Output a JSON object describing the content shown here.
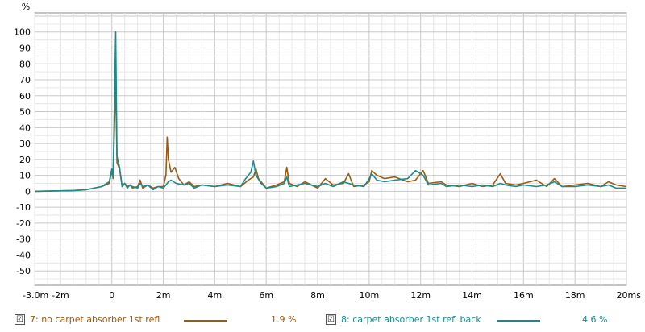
{
  "chart_data": {
    "type": "line",
    "title": "",
    "xlabel": "",
    "ylabel": "%",
    "xlim": [
      -3.0,
      20.0
    ],
    "ylim": [
      -59,
      112
    ],
    "x_ticks": [
      {
        "v": -3.0,
        "label": "-3.0m"
      },
      {
        "v": -2,
        "label": "-2m"
      },
      {
        "v": 0,
        "label": "0"
      },
      {
        "v": 2,
        "label": "2m"
      },
      {
        "v": 4,
        "label": "4m"
      },
      {
        "v": 6,
        "label": "6m"
      },
      {
        "v": 8,
        "label": "8m"
      },
      {
        "v": 10,
        "label": "10m"
      },
      {
        "v": 12,
        "label": "12m"
      },
      {
        "v": 14,
        "label": "14m"
      },
      {
        "v": 16,
        "label": "16m"
      },
      {
        "v": 18,
        "label": "18m"
      },
      {
        "v": 20,
        "label": "20ms"
      }
    ],
    "y_ticks": [
      100,
      90,
      80,
      70,
      60,
      50,
      40,
      30,
      20,
      10,
      0,
      -10,
      -20,
      -30,
      -40,
      -50
    ],
    "grid": true,
    "series": [
      {
        "name": "7: no carpet absorber 1st refl",
        "color": "#9c5a12",
        "points": [
          [
            -3,
            0
          ],
          [
            -1.5,
            0.5
          ],
          [
            -1,
            1
          ],
          [
            -0.4,
            3
          ],
          [
            -0.1,
            5
          ],
          [
            0,
            13
          ],
          [
            0.05,
            8
          ],
          [
            0.15,
            70
          ],
          [
            0.2,
            18
          ],
          [
            0.3,
            14
          ],
          [
            0.4,
            3
          ],
          [
            0.5,
            5
          ],
          [
            0.6,
            3
          ],
          [
            0.7,
            4
          ],
          [
            0.8,
            2
          ],
          [
            1,
            3
          ],
          [
            1.1,
            7
          ],
          [
            1.2,
            2
          ],
          [
            1.4,
            4
          ],
          [
            1.6,
            2
          ],
          [
            1.8,
            3
          ],
          [
            2.0,
            3
          ],
          [
            2.1,
            10
          ],
          [
            2.15,
            34
          ],
          [
            2.2,
            20
          ],
          [
            2.3,
            12
          ],
          [
            2.45,
            15
          ],
          [
            2.6,
            8
          ],
          [
            2.8,
            4
          ],
          [
            3.0,
            6
          ],
          [
            3.2,
            3
          ],
          [
            3.5,
            4
          ],
          [
            4.0,
            3
          ],
          [
            4.5,
            5
          ],
          [
            5.0,
            3
          ],
          [
            5.3,
            7
          ],
          [
            5.5,
            9
          ],
          [
            5.6,
            14
          ],
          [
            5.7,
            8
          ],
          [
            6.0,
            2
          ],
          [
            6.4,
            4
          ],
          [
            6.7,
            6
          ],
          [
            6.8,
            15
          ],
          [
            6.9,
            5
          ],
          [
            7.2,
            3
          ],
          [
            7.5,
            6
          ],
          [
            8.0,
            2
          ],
          [
            8.3,
            8
          ],
          [
            8.6,
            4
          ],
          [
            9.0,
            5
          ],
          [
            9.2,
            11
          ],
          [
            9.4,
            3
          ],
          [
            9.8,
            4
          ],
          [
            10.0,
            6
          ],
          [
            10.1,
            13
          ],
          [
            10.3,
            10
          ],
          [
            10.6,
            8
          ],
          [
            11.0,
            9
          ],
          [
            11.5,
            6
          ],
          [
            11.8,
            7
          ],
          [
            12.1,
            13
          ],
          [
            12.3,
            5
          ],
          [
            12.8,
            6
          ],
          [
            13.0,
            4
          ],
          [
            13.5,
            3
          ],
          [
            14.0,
            5
          ],
          [
            14.4,
            3
          ],
          [
            14.8,
            4
          ],
          [
            15.1,
            11
          ],
          [
            15.3,
            5
          ],
          [
            15.7,
            4
          ],
          [
            16.0,
            5
          ],
          [
            16.5,
            7
          ],
          [
            16.9,
            3
          ],
          [
            17.2,
            8
          ],
          [
            17.5,
            3
          ],
          [
            18.0,
            4
          ],
          [
            18.5,
            5
          ],
          [
            19.0,
            3
          ],
          [
            19.3,
            6
          ],
          [
            19.6,
            4
          ],
          [
            20.0,
            3
          ]
        ]
      },
      {
        "name": "8: carpet absorber 1st refl back",
        "color": "#1a8a8c",
        "points": [
          [
            -3,
            0
          ],
          [
            -1.5,
            0.5
          ],
          [
            -1,
            1
          ],
          [
            -0.4,
            3
          ],
          [
            -0.1,
            6
          ],
          [
            0,
            14
          ],
          [
            0.05,
            9
          ],
          [
            0.15,
            100
          ],
          [
            0.2,
            22
          ],
          [
            0.3,
            15
          ],
          [
            0.4,
            3
          ],
          [
            0.5,
            5
          ],
          [
            0.6,
            2
          ],
          [
            0.7,
            4
          ],
          [
            0.8,
            3
          ],
          [
            1,
            2
          ],
          [
            1.1,
            5
          ],
          [
            1.2,
            3
          ],
          [
            1.4,
            4
          ],
          [
            1.6,
            1
          ],
          [
            1.8,
            3
          ],
          [
            2.0,
            2
          ],
          [
            2.1,
            4
          ],
          [
            2.2,
            6
          ],
          [
            2.3,
            7
          ],
          [
            2.5,
            5
          ],
          [
            2.8,
            4
          ],
          [
            3.0,
            5
          ],
          [
            3.2,
            2
          ],
          [
            3.5,
            4
          ],
          [
            4.0,
            3
          ],
          [
            4.5,
            4
          ],
          [
            5.0,
            3
          ],
          [
            5.2,
            8
          ],
          [
            5.4,
            12
          ],
          [
            5.5,
            19
          ],
          [
            5.6,
            10
          ],
          [
            5.8,
            5
          ],
          [
            6.0,
            2
          ],
          [
            6.4,
            3
          ],
          [
            6.7,
            5
          ],
          [
            6.8,
            9
          ],
          [
            6.9,
            3
          ],
          [
            7.2,
            4
          ],
          [
            7.5,
            5
          ],
          [
            8.0,
            3
          ],
          [
            8.3,
            5
          ],
          [
            8.6,
            3
          ],
          [
            9.0,
            6
          ],
          [
            9.2,
            5
          ],
          [
            9.4,
            4
          ],
          [
            9.8,
            3
          ],
          [
            10.0,
            8
          ],
          [
            10.1,
            11
          ],
          [
            10.3,
            7
          ],
          [
            10.6,
            6
          ],
          [
            11.0,
            7
          ],
          [
            11.5,
            8
          ],
          [
            11.8,
            13
          ],
          [
            12.1,
            10
          ],
          [
            12.3,
            4
          ],
          [
            12.8,
            5
          ],
          [
            13.0,
            3
          ],
          [
            13.5,
            4
          ],
          [
            14.0,
            3
          ],
          [
            14.4,
            4
          ],
          [
            14.8,
            3
          ],
          [
            15.1,
            5
          ],
          [
            15.3,
            4
          ],
          [
            15.7,
            3
          ],
          [
            16.0,
            4
          ],
          [
            16.5,
            3
          ],
          [
            16.9,
            4
          ],
          [
            17.2,
            6
          ],
          [
            17.5,
            3
          ],
          [
            18.0,
            3
          ],
          [
            18.5,
            4
          ],
          [
            19.0,
            3
          ],
          [
            19.3,
            4
          ],
          [
            19.6,
            2
          ],
          [
            20.0,
            2
          ]
        ]
      }
    ],
    "legend": {
      "placement": "bottom",
      "items": [
        {
          "label": "7: no carpet absorber 1st refl",
          "value": "1.9 %",
          "color": "#9c5a12",
          "checked": "☑"
        },
        {
          "label": "8: carpet absorber 1st refl back",
          "value": "4.6 %",
          "color": "#1a8a8c",
          "checked": "☑"
        }
      ]
    }
  }
}
